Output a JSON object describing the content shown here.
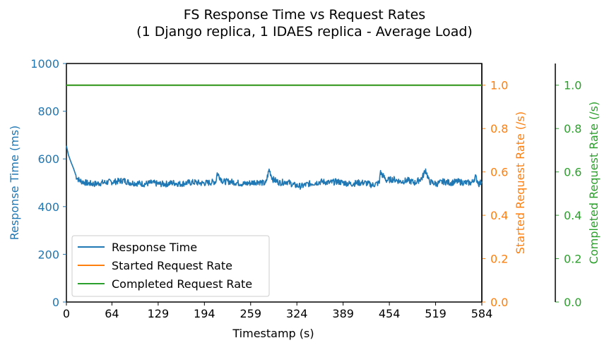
{
  "chart_data": {
    "type": "line",
    "title_line1": "FS Response Time vs Request Rates",
    "title_line2": "(1 Django replica, 1 IDAES replica - Average Load)",
    "xlabel": "Timestamp (s)",
    "ylabel_left": "Response Time (ms)",
    "ylabel_right1": "Started Request Rate (/s)",
    "ylabel_right2": "Completed Request Rate (/s)",
    "xlim": [
      0,
      584
    ],
    "ylim_left": [
      0,
      1000
    ],
    "ylim_right": [
      0,
      1.1
    ],
    "x_ticks": [
      "0",
      "64",
      "129",
      "194",
      "259",
      "324",
      "389",
      "454",
      "519",
      "584"
    ],
    "y_ticks_left": [
      "0",
      "200",
      "400",
      "600",
      "800",
      "1000"
    ],
    "y_ticks_right": [
      "0.0",
      "0.2",
      "0.4",
      "0.6",
      "0.8",
      "1.0"
    ],
    "colors": {
      "response_time": "#1f77b4",
      "started": "#ff7f0e",
      "completed": "#2ca02c"
    },
    "legend_position": "lower-left",
    "series": [
      {
        "name": "Response Time",
        "axis": "left",
        "x": [
          0,
          3,
          6,
          10,
          14,
          18,
          22,
          30,
          40,
          50,
          60,
          70,
          80,
          90,
          100,
          110,
          120,
          130,
          140,
          150,
          160,
          170,
          180,
          190,
          200,
          210,
          212,
          220,
          230,
          240,
          250,
          260,
          270,
          280,
          285,
          290,
          300,
          310,
          320,
          330,
          340,
          350,
          360,
          370,
          380,
          390,
          400,
          410,
          420,
          430,
          440,
          441,
          450,
          460,
          470,
          480,
          490,
          500,
          505,
          510,
          520,
          530,
          540,
          550,
          560,
          570,
          575,
          580,
          584
        ],
        "y": [
          655,
          615,
          590,
          560,
          525,
          510,
          505,
          498,
          495,
          500,
          503,
          505,
          510,
          500,
          498,
          495,
          500,
          495,
          495,
          500,
          495,
          500,
          502,
          498,
          500,
          505,
          540,
          505,
          505,
          500,
          495,
          500,
          505,
          495,
          555,
          515,
          500,
          505,
          490,
          485,
          495,
          500,
          505,
          500,
          505,
          500,
          495,
          500,
          500,
          490,
          500,
          545,
          510,
          515,
          505,
          510,
          500,
          520,
          555,
          505,
          495,
          505,
          500,
          505,
          500,
          500,
          525,
          495,
          505
        ]
      },
      {
        "name": "Started Request Rate",
        "axis": "right",
        "x": [
          0,
          584
        ],
        "y": [
          1.0,
          1.0
        ]
      },
      {
        "name": "Completed Request Rate",
        "axis": "right",
        "x": [
          0,
          584
        ],
        "y": [
          1.0,
          1.0
        ]
      }
    ]
  }
}
